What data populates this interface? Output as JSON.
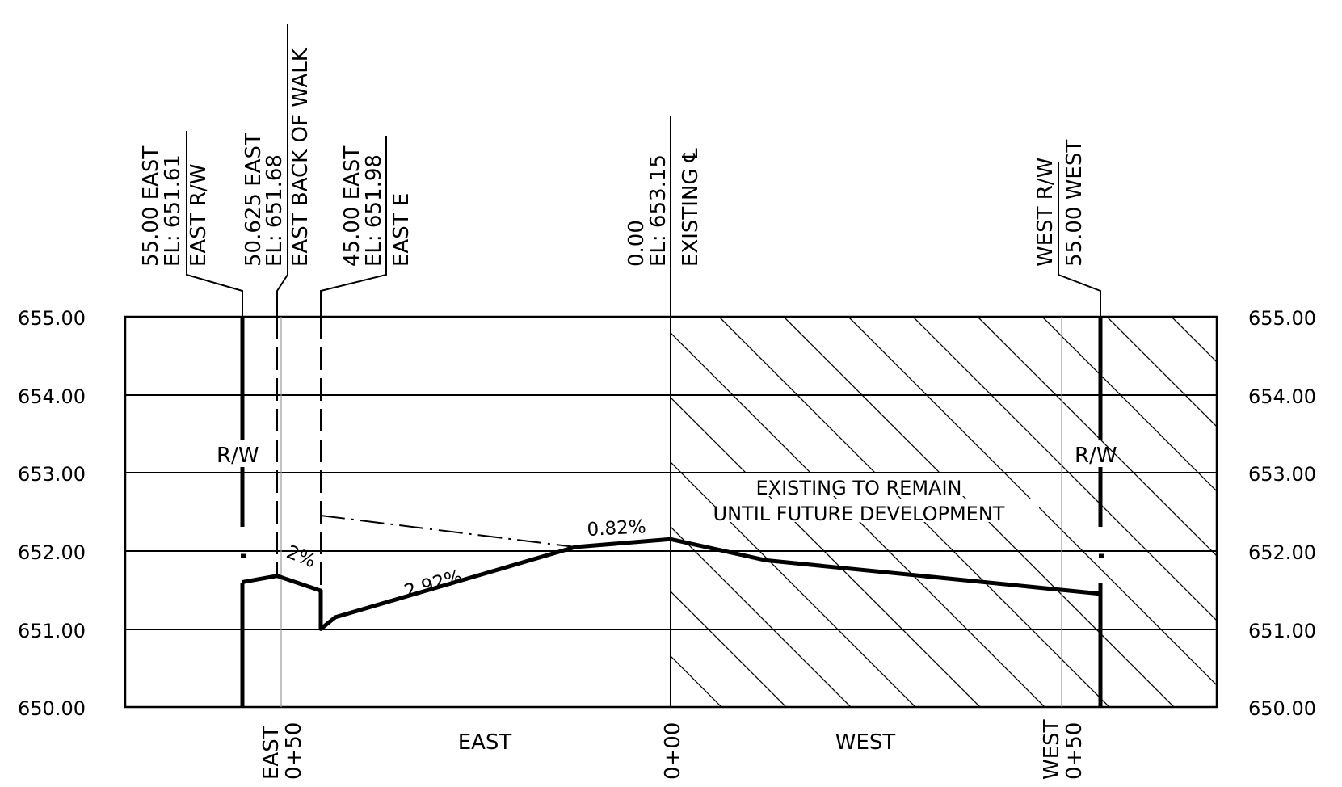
{
  "title": "",
  "section": {
    "y_axis": {
      "min": 650.0,
      "max": 655.0,
      "step": 1.0,
      "tick_labels": [
        "655.00",
        "654.00",
        "653.00",
        "652.00",
        "651.00",
        "650.00"
      ]
    },
    "x_axis_labels": {
      "east_0_50": [
        "EAST",
        "0+50"
      ],
      "east": "EAST",
      "centerline": "0+00",
      "west": "WEST",
      "west_0_50": [
        "WEST",
        "0+50"
      ]
    },
    "callouts": {
      "east_rw": [
        "55.00 EAST",
        "EL: 651.61",
        "EAST R/W"
      ],
      "east_back_of_walk": [
        "50.625 EAST",
        "EL: 651.68",
        "EAST BACK OF WALK"
      ],
      "east_edge": [
        "45.00 EAST",
        "EL: 651.98",
        "EAST E"
      ],
      "existing_cl": [
        "0.00",
        "EL: 653.15",
        "EXISTING ℄"
      ],
      "west_rw": [
        "WEST R/W",
        "55.00 WEST"
      ]
    },
    "rw_marks": [
      "R/W",
      "R/W"
    ],
    "slope_labels": [
      "2%",
      "2.92%",
      "0.82%"
    ],
    "note": [
      "EXISTING TO REMAIN",
      "UNTIL FUTURE DEVELOPMENT"
    ],
    "profile_elevations": [
      651.6,
      651.68,
      651.49,
      651.0,
      651.15,
      652.05,
      652.15,
      651.88,
      651.45
    ],
    "colors": {
      "ink": "#000000",
      "gridline": "#999999"
    }
  }
}
